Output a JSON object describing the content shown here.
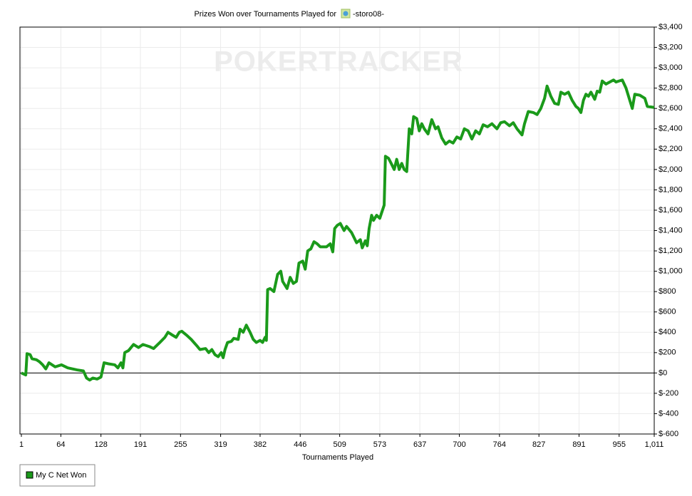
{
  "chart_data": {
    "type": "line",
    "title": "Prizes Won over Tournaments Played for",
    "player": "-storo08-",
    "watermark": "POKERTRACKER",
    "x_label": "Tournaments Played",
    "xlim": [
      1,
      1011
    ],
    "xticks": [
      1,
      64,
      128,
      191,
      255,
      319,
      382,
      446,
      509,
      573,
      637,
      700,
      764,
      827,
      891,
      955,
      {
        "value": 1011,
        "label": "1,011"
      }
    ],
    "ylim": [
      -600,
      3400
    ],
    "yticks": [
      {
        "value": -600,
        "label": "$-600"
      },
      {
        "value": -400,
        "label": "$-400"
      },
      {
        "value": -200,
        "label": "$-200"
      },
      {
        "value": 0,
        "label": "$0"
      },
      {
        "value": 200,
        "label": "$200"
      },
      {
        "value": 400,
        "label": "$400"
      },
      {
        "value": 600,
        "label": "$600"
      },
      {
        "value": 800,
        "label": "$800"
      },
      {
        "value": 1000,
        "label": "$1,000"
      },
      {
        "value": 1200,
        "label": "$1,200"
      },
      {
        "value": 1400,
        "label": "$1,400"
      },
      {
        "value": 1600,
        "label": "$1,600"
      },
      {
        "value": 1800,
        "label": "$1,800"
      },
      {
        "value": 2000,
        "label": "$2,000"
      },
      {
        "value": 2200,
        "label": "$2,200"
      },
      {
        "value": 2400,
        "label": "$2,400"
      },
      {
        "value": 2600,
        "label": "$2,600"
      },
      {
        "value": 2800,
        "label": "$2,800"
      },
      {
        "value": 3000,
        "label": "$3,000"
      },
      {
        "value": 3200,
        "label": "$3,200"
      },
      {
        "value": 3400,
        "label": "$3,400"
      }
    ],
    "grid": true,
    "legend": "bottom-left",
    "x": [
      1,
      8,
      10,
      15,
      18,
      25,
      30,
      35,
      40,
      45,
      50,
      55,
      65,
      75,
      90,
      100,
      105,
      110,
      115,
      122,
      128,
      133,
      140,
      150,
      155,
      160,
      163,
      166,
      172,
      180,
      188,
      195,
      205,
      212,
      222,
      230,
      235,
      240,
      248,
      253,
      257,
      265,
      272,
      282,
      286,
      295,
      300,
      305,
      310,
      315,
      320,
      323,
      326,
      330,
      336,
      340,
      347,
      350,
      355,
      360,
      366,
      371,
      376,
      382,
      386,
      390,
      392,
      394,
      398,
      404,
      410,
      415,
      418,
      425,
      430,
      435,
      440,
      444,
      450,
      454,
      458,
      463,
      468,
      473,
      478,
      488,
      494,
      498,
      501,
      505,
      510,
      516,
      520,
      528,
      536,
      542,
      545,
      550,
      553,
      556,
      560,
      563,
      568,
      573,
      580,
      582,
      587,
      592,
      596,
      600,
      604,
      608,
      612,
      616,
      620,
      624,
      627,
      632,
      636,
      640,
      644,
      650,
      656,
      662,
      666,
      672,
      678,
      684,
      690,
      696,
      702,
      708,
      714,
      720,
      726,
      732,
      738,
      745,
      752,
      760,
      766,
      772,
      780,
      786,
      792,
      800,
      804,
      810,
      818,
      824,
      830,
      836,
      840,
      846,
      852,
      858,
      862,
      868,
      874,
      880,
      886,
      890,
      894,
      898,
      902,
      906,
      910,
      916,
      920,
      924,
      928,
      934,
      940,
      946,
      950,
      955,
      960,
      966,
      972,
      976,
      980,
      988,
      996,
      1000,
      1011
    ],
    "series": [
      {
        "name": "My C Net Won",
        "color": "#1a9a1a",
        "values": [
          0,
          -20,
          190,
          180,
          140,
          130,
          110,
          80,
          40,
          100,
          80,
          60,
          80,
          50,
          30,
          20,
          -50,
          -70,
          -50,
          -60,
          -40,
          100,
          90,
          80,
          50,
          100,
          50,
          200,
          220,
          280,
          250,
          280,
          260,
          240,
          300,
          350,
          400,
          380,
          350,
          400,
          410,
          370,
          330,
          260,
          230,
          240,
          200,
          230,
          180,
          160,
          200,
          150,
          230,
          300,
          310,
          340,
          330,
          430,
          400,
          470,
          400,
          330,
          300,
          320,
          300,
          350,
          320,
          820,
          830,
          800,
          970,
          1000,
          900,
          830,
          940,
          880,
          900,
          1080,
          1100,
          1020,
          1200,
          1220,
          1290,
          1270,
          1240,
          1240,
          1270,
          1190,
          1420,
          1450,
          1470,
          1400,
          1440,
          1380,
          1280,
          1310,
          1230,
          1300,
          1250,
          1420,
          1550,
          1500,
          1550,
          1520,
          1650,
          2130,
          2110,
          2050,
          2000,
          2100,
          2000,
          2060,
          2000,
          1980,
          2400,
          2350,
          2520,
          2500,
          2380,
          2450,
          2400,
          2350,
          2490,
          2400,
          2420,
          2310,
          2250,
          2280,
          2260,
          2320,
          2300,
          2400,
          2380,
          2300,
          2380,
          2350,
          2440,
          2420,
          2450,
          2400,
          2460,
          2470,
          2430,
          2460,
          2400,
          2340,
          2450,
          2570,
          2560,
          2540,
          2600,
          2700,
          2820,
          2720,
          2650,
          2640,
          2760,
          2740,
          2760,
          2680,
          2620,
          2600,
          2560,
          2680,
          2740,
          2720,
          2760,
          2690,
          2770,
          2760,
          2870,
          2840,
          2860,
          2880,
          2860,
          2870,
          2880,
          2800,
          2680,
          2600,
          2740,
          2730,
          2700,
          2620,
          2610
        ]
      }
    ]
  }
}
